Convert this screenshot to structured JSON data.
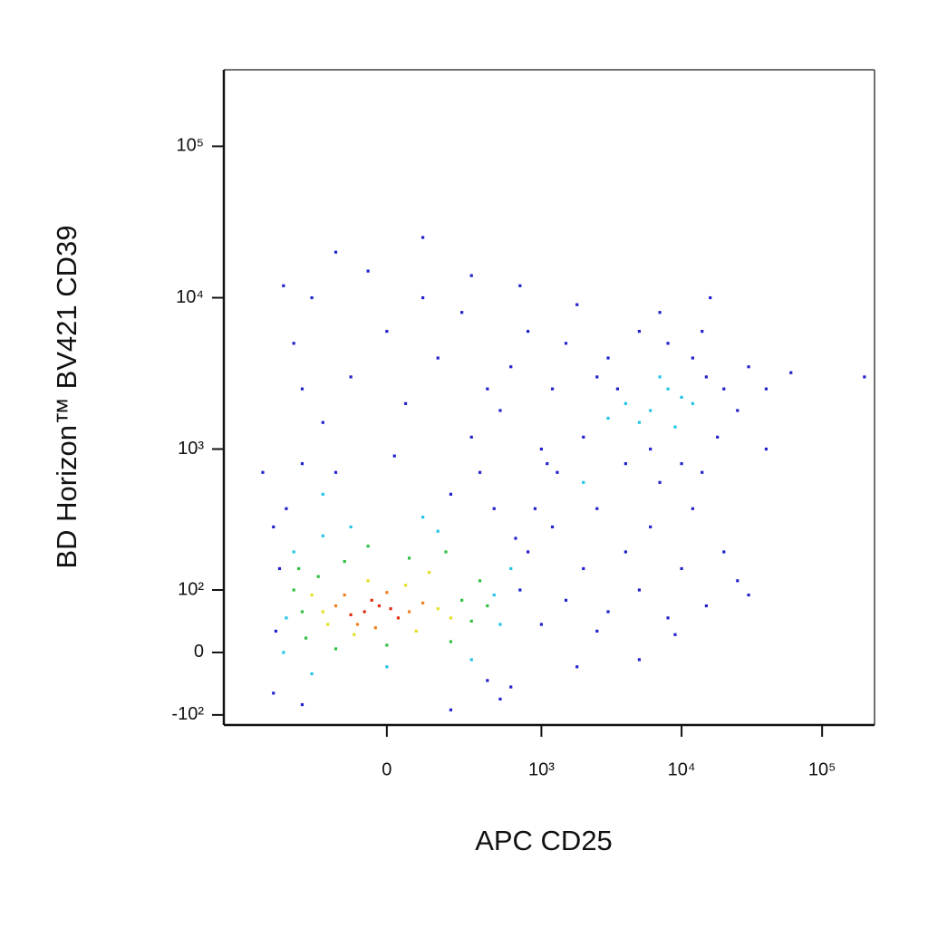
{
  "chart_data": {
    "type": "scatter",
    "x_label": "APC CD25",
    "y_label": "BD Horizon™ BV421 CD39",
    "xscale": "biexponential",
    "yscale": "biexponential",
    "xlim": [
      -1150,
      236000
    ],
    "ylim": [
      -122,
      320000
    ],
    "xticks": [
      0,
      {
        "value": 1000,
        "label": "10³"
      },
      {
        "value": 10000,
        "label": "10⁴"
      },
      {
        "value": 100000,
        "label": "10⁵"
      }
    ],
    "yticks": [
      {
        "value": -100,
        "label": "-10²"
      },
      0,
      {
        "value": 100,
        "label": "10²"
      },
      {
        "value": 1000,
        "label": "10³"
      },
      {
        "value": 10000,
        "label": "10⁴"
      },
      {
        "value": 100000,
        "label": "10⁵"
      }
    ],
    "series": [
      {
        "color": "#2222cc",
        "x": [
          -400,
          -300,
          -200,
          -100,
          0,
          100,
          200,
          300,
          400,
          -350,
          -250,
          -150,
          50,
          150,
          250,
          350,
          500,
          600,
          800,
          1000,
          1200,
          1500,
          700,
          -420,
          -50,
          450,
          900,
          -300,
          20,
          300,
          1800,
          2500,
          2000,
          1300,
          -150,
          100,
          3000,
          4000,
          5000,
          6000,
          8000,
          10000,
          12000,
          15000,
          20000,
          25000,
          30000,
          18000,
          14000,
          7000,
          3500,
          40000,
          16000,
          1200,
          1500,
          2000,
          2500,
          3000,
          4000,
          5000,
          6000,
          8000,
          10000,
          12000,
          15000,
          20000,
          2500,
          1800,
          5000,
          9000,
          30000,
          1100,
          7000,
          14000,
          25000,
          600,
          800,
          1000,
          -500,
          -450,
          500,
          -300,
          200,
          -500,
          650,
          700,
          -480,
          400,
          -600,
          200000,
          40000,
          60000
        ],
        "values": [
          400,
          800,
          1500,
          3000,
          6000,
          10000,
          500,
          1200,
          2500,
          5000,
          10000,
          700,
          2000,
          4000,
          8000,
          700,
          1800,
          3500,
          6000,
          1000,
          2500,
          5000,
          12000,
          12000,
          15000,
          400,
          400,
          2500,
          900,
          14000,
          9000,
          3000,
          1200,
          700,
          20000,
          25000,
          4000,
          800,
          6000,
          1000,
          5000,
          800,
          4000,
          3000,
          2500,
          1800,
          3500,
          1200,
          6000,
          8000,
          2500,
          2500,
          10000,
          300,
          80,
          150,
          400,
          60,
          200,
          100,
          300,
          50,
          150,
          400,
          70,
          200,
          30,
          -20,
          -10,
          25,
          90,
          800,
          600,
          700,
          120,
          -50,
          200,
          40,
          -60,
          150,
          -70,
          -80,
          -90,
          300,
          250,
          100,
          30,
          -40,
          700,
          3000,
          1000,
          3200
        ]
      },
      {
        "color": "#22c4e8",
        "x": [
          -400,
          450,
          -350,
          500,
          -200,
          150,
          -420,
          300,
          0,
          -100,
          600,
          -250,
          100,
          4000,
          6000,
          8000,
          10000,
          5000,
          12000,
          7000,
          -200,
          3000,
          9000,
          2000
        ],
        "values": [
          50,
          90,
          200,
          40,
          260,
          280,
          0,
          -10,
          -20,
          300,
          150,
          -30,
          350,
          2000,
          1800,
          2500,
          2200,
          1500,
          2000,
          3000,
          500,
          1600,
          1400,
          600
        ]
      },
      {
        "color": "#2fc040",
        "x": [
          -300,
          250,
          -220,
          300,
          -120,
          60,
          -280,
          200,
          0,
          -350,
          350,
          -150,
          180,
          400,
          -50,
          -320
        ],
        "values": [
          60,
          80,
          130,
          45,
          170,
          180,
          20,
          15,
          10,
          100,
          120,
          5,
          200,
          70,
          220,
          150
        ]
      },
      {
        "color": "#e4e020",
        "x": [
          -200,
          150,
          -50,
          50,
          -180,
          200,
          -90,
          80,
          -250,
          120
        ],
        "values": [
          60,
          65,
          120,
          110,
          40,
          50,
          25,
          30,
          90,
          140
        ]
      },
      {
        "color": "#f08020",
        "x": [
          -150,
          60,
          -80,
          0,
          -120,
          100,
          -30
        ],
        "values": [
          70,
          60,
          40,
          95,
          90,
          75,
          35
        ]
      },
      {
        "color": "#e03010",
        "x": [
          -60,
          -20,
          -100,
          10,
          -40,
          30
        ],
        "values": [
          60,
          70,
          55,
          65,
          80,
          50
        ]
      }
    ]
  }
}
